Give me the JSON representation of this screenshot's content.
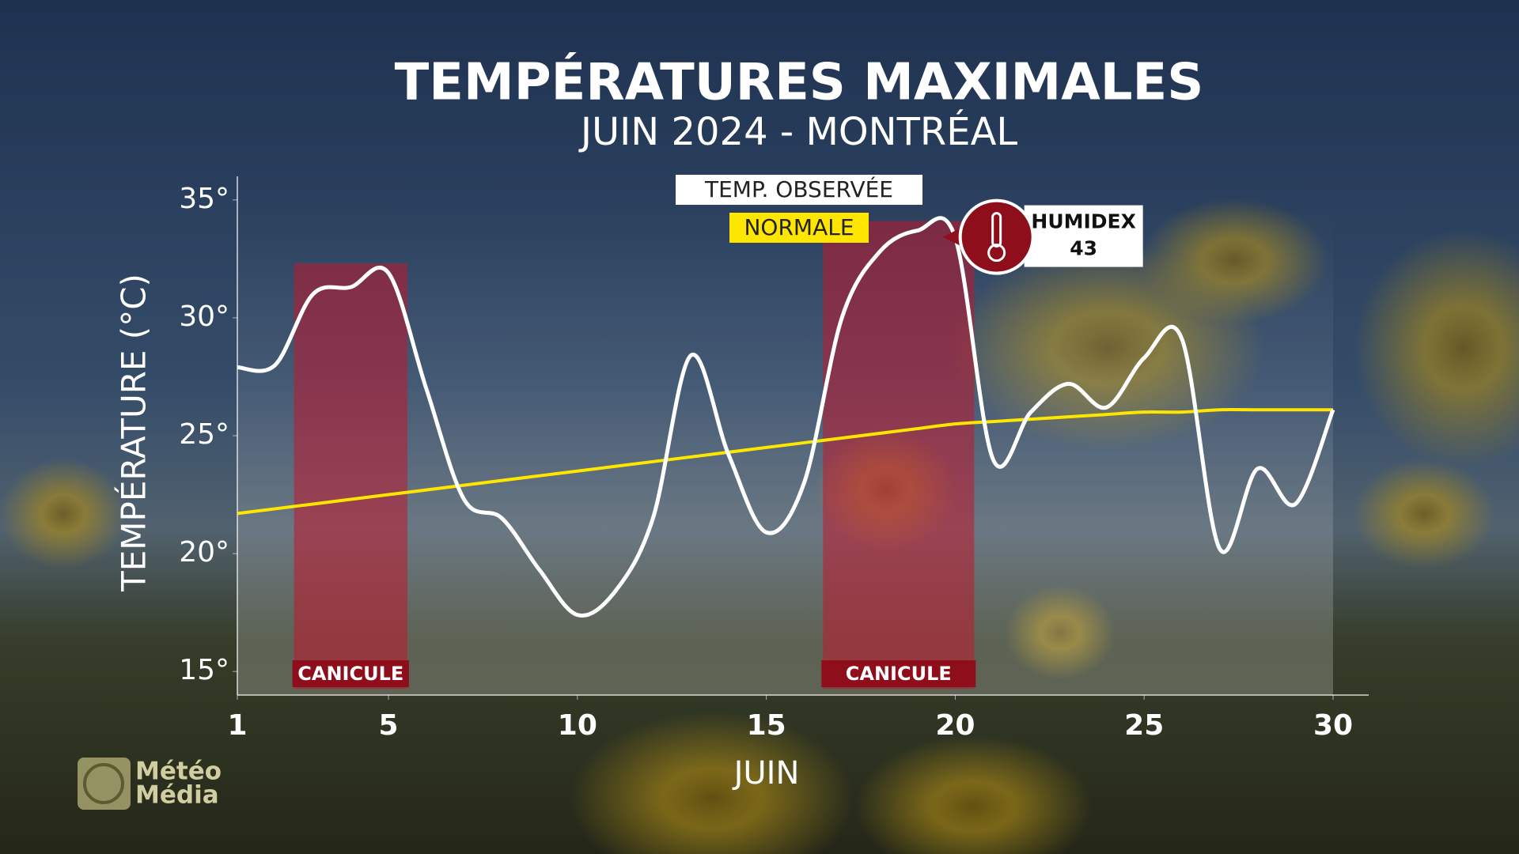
{
  "chart_data": {
    "type": "line",
    "title": "TEMPÉRATURES MAXIMALES",
    "subtitle": "JUIN 2024 - MONTRÉAL",
    "y_label": "TEMPÉRATURE (°C)",
    "x_label": "JUIN",
    "x": [
      1,
      2,
      3,
      4,
      5,
      6,
      7,
      8,
      9,
      10,
      11,
      12,
      13,
      14,
      15,
      16,
      17,
      18,
      19,
      20,
      21,
      22,
      23,
      24,
      25,
      26,
      27,
      28,
      29,
      30
    ],
    "series": [
      {
        "name": "TEMP. OBSERVÉE",
        "color": "#ffffff",
        "values": [
          27.9,
          28.0,
          31.0,
          31.3,
          31.9,
          27.0,
          22.3,
          21.5,
          19.3,
          17.4,
          18.4,
          21.5,
          28.4,
          24.2,
          20.9,
          23.0,
          30.0,
          32.8,
          33.7,
          33.4,
          24.0,
          26.0,
          27.2,
          26.2,
          28.3,
          29.1,
          20.2,
          23.6,
          22.1,
          26.1
        ]
      },
      {
        "name": "NORMALE",
        "color": "#ffe600",
        "values": [
          21.7,
          21.9,
          22.1,
          22.3,
          22.5,
          22.7,
          22.9,
          23.1,
          23.3,
          23.5,
          23.7,
          23.9,
          24.1,
          24.3,
          24.5,
          24.7,
          24.9,
          25.1,
          25.3,
          25.5,
          25.6,
          25.7,
          25.8,
          25.9,
          26.0,
          26.0,
          26.1,
          26.1,
          26.1,
          26.1
        ]
      }
    ],
    "heatwaves": [
      {
        "start": 3,
        "end": 5,
        "label": "CANICULE"
      },
      {
        "start": 17,
        "end": 20,
        "label": "CANICULE"
      }
    ],
    "annotation": {
      "label": "HUMIDEX",
      "value": 43
    },
    "xlim": [
      1,
      30
    ],
    "xticks": [
      1,
      5,
      10,
      15,
      20,
      25,
      30
    ],
    "ylim": [
      14,
      36
    ],
    "yticks": [
      {
        "value": 15,
        "label": "15°"
      },
      {
        "value": 20,
        "label": "20°"
      },
      {
        "value": 25,
        "label": "25°"
      },
      {
        "value": 30,
        "label": "30°"
      },
      {
        "value": 35,
        "label": "35°"
      }
    ],
    "logo": [
      "Météo",
      "Média"
    ]
  }
}
